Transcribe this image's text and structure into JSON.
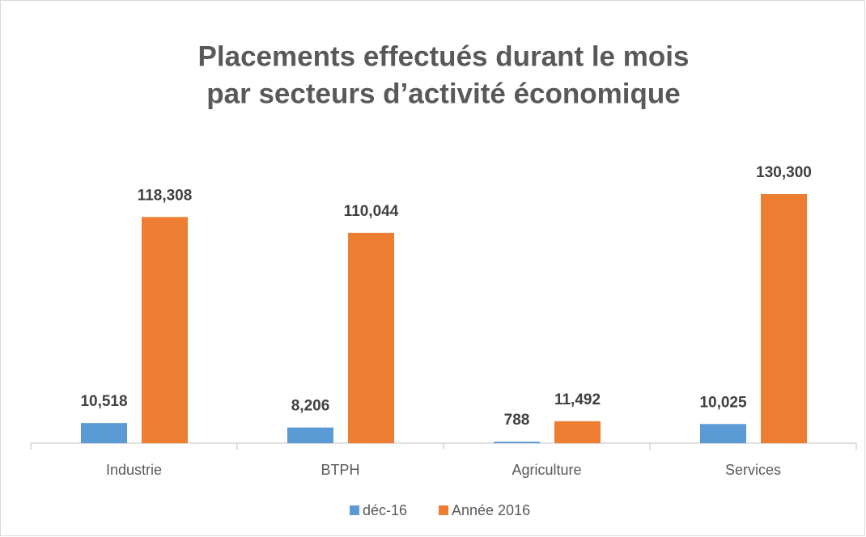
{
  "chart_data": {
    "type": "bar",
    "title": [
      "Placements effectués durant le mois",
      "par secteurs d’activité économique"
    ],
    "categories": [
      "Industrie",
      "BTPH",
      "Agriculture",
      "Services"
    ],
    "series": [
      {
        "name": "déc-16",
        "color": "#5b9bd5",
        "values": [
          10518,
          8206,
          788,
          10025
        ],
        "value_labels": [
          "10,518",
          "8,206",
          "788",
          "10,025"
        ]
      },
      {
        "name": "Année 2016",
        "color": "#ed7d31",
        "values": [
          118308,
          110044,
          11492,
          130300
        ],
        "value_labels": [
          "118,308",
          "110,044",
          "11,492",
          "130,300"
        ]
      }
    ],
    "legend": "bottom"
  }
}
